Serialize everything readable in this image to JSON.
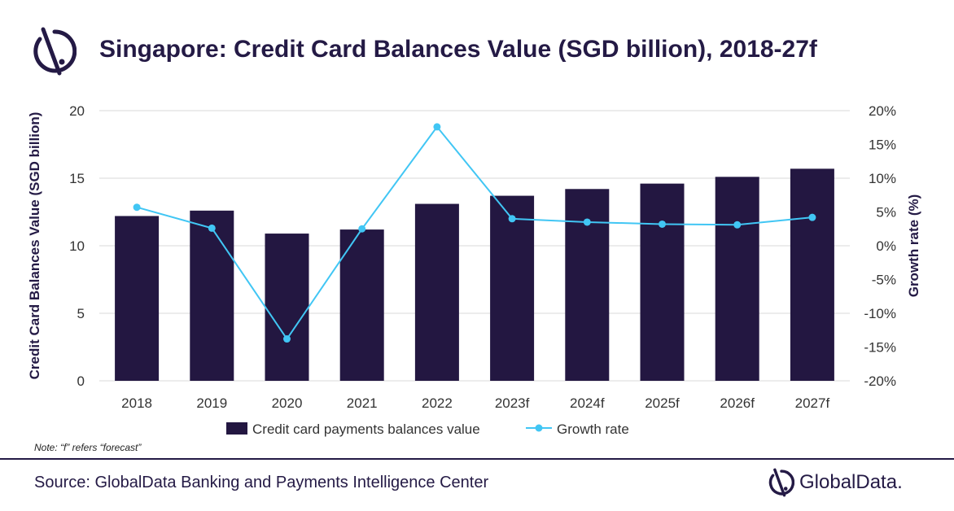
{
  "header": {
    "title": "Singapore: Credit Card Balances Value (SGD billion), 2018-27f",
    "logo_icon": "globaldata-logo-icon"
  },
  "footer": {
    "note": "Note: “f” refers “forecast”",
    "source": "Source: GlobalData Banking and Payments Intelligence Center",
    "brand": "GlobalData.",
    "brand_icon": "globaldata-logo-icon"
  },
  "colors": {
    "bar": "#231741",
    "line": "#41c6f4",
    "title": "#241a45"
  },
  "chart_data": {
    "type": "bar",
    "categories": [
      "2018",
      "2019",
      "2020",
      "2021",
      "2022",
      "2023f",
      "2024f",
      "2025f",
      "2026f",
      "2027f"
    ],
    "series": [
      {
        "name": "Credit card payments balances value",
        "type": "bar",
        "axis": "left",
        "values": [
          12.2,
          12.6,
          10.9,
          11.2,
          13.1,
          13.7,
          14.2,
          14.6,
          15.1,
          15.7
        ]
      },
      {
        "name": "Growth rate",
        "type": "line",
        "axis": "right",
        "values": [
          5.7,
          2.6,
          -13.8,
          2.5,
          17.6,
          4.0,
          3.5,
          3.2,
          3.1,
          4.2
        ]
      }
    ],
    "ylabel": "Credit Card Balances Value (SGD billion)",
    "y2label": "Growth rate (%)",
    "ylim": [
      0,
      20
    ],
    "y2lim": [
      -20,
      20
    ],
    "yticks": [
      "0",
      "5",
      "10",
      "15",
      "20"
    ],
    "y2ticks": [
      "-20%",
      "-15%",
      "-10%",
      "-5%",
      "0%",
      "5%",
      "10%",
      "15%",
      "20%"
    ],
    "grid": true,
    "legend": "bottom"
  }
}
